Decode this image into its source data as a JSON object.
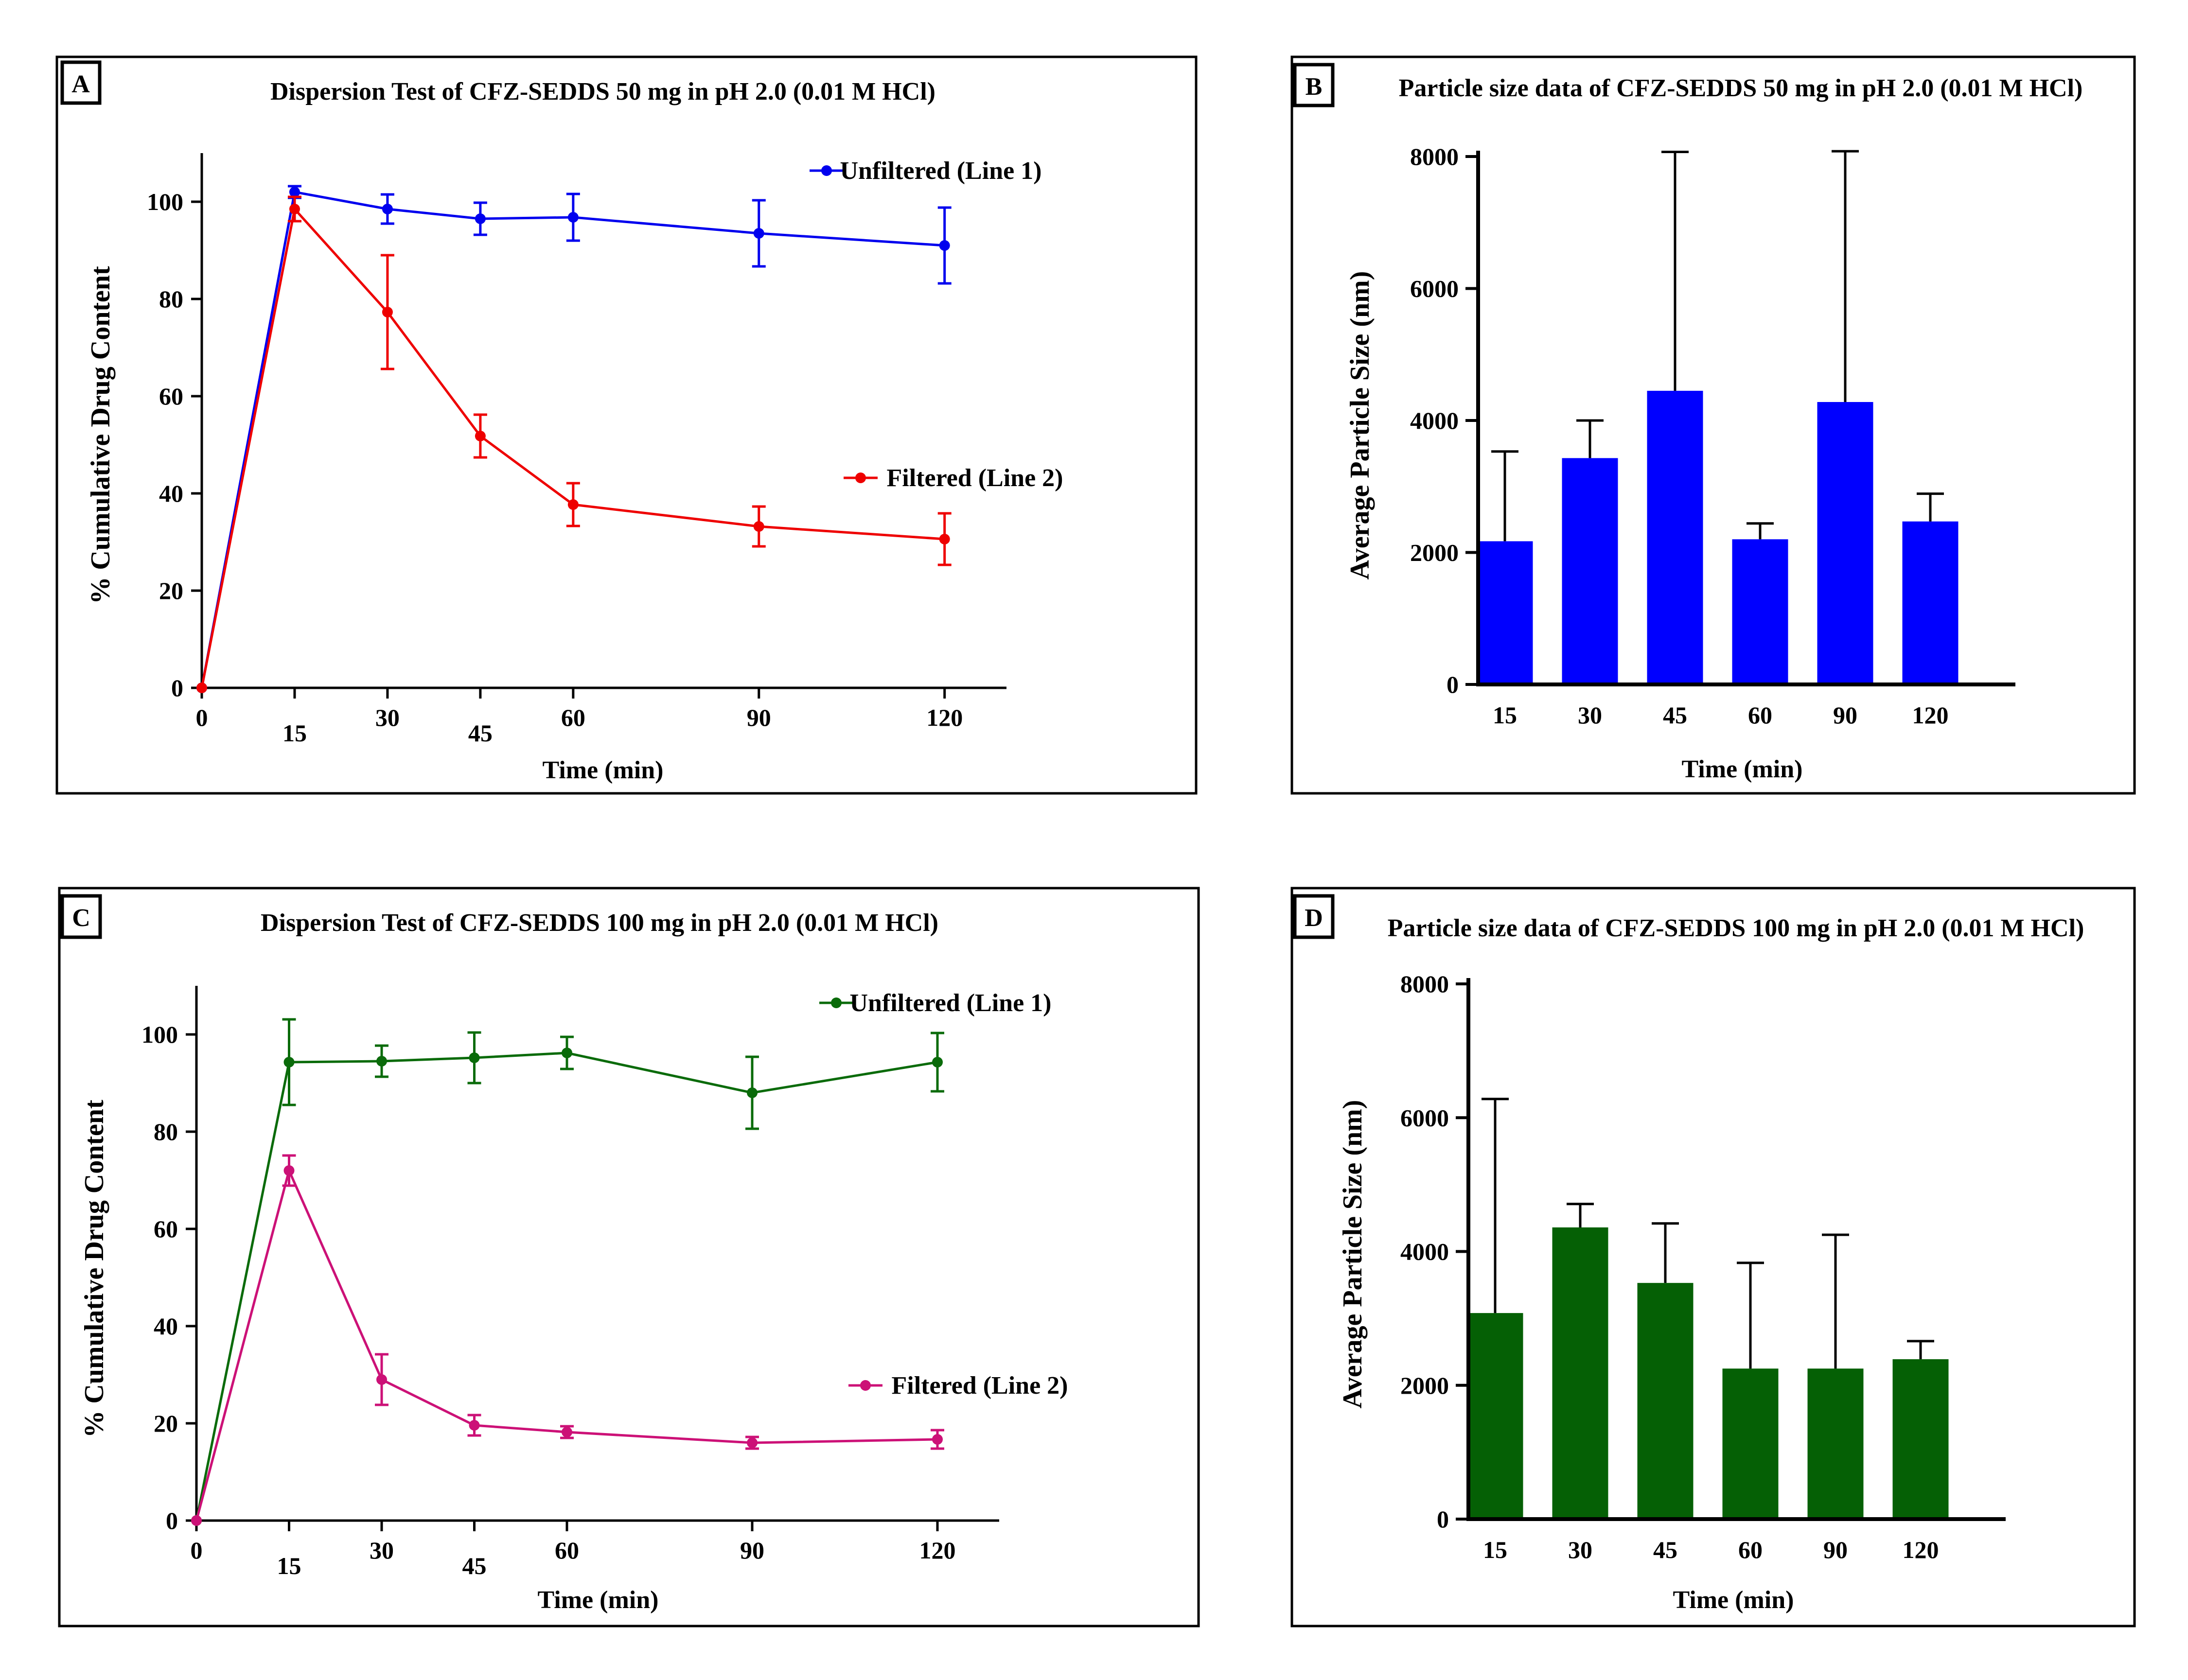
{
  "chart_data": [
    {
      "type": "line",
      "panel_label": "A",
      "title": "Dispersion Test of CFZ-SEDDS 50 mg in pH 2.0 (0.01 M HCl)",
      "xlabel": "Time (min)",
      "ylabel": "% Cumulative Drug Content",
      "xlim": [
        0,
        130
      ],
      "ylim": [
        0,
        110
      ],
      "x_ticks": [
        0,
        15,
        30,
        45,
        60,
        90,
        120
      ],
      "y_ticks": [
        0,
        20,
        40,
        60,
        80,
        100
      ],
      "legend_position": "top-right",
      "series": [
        {
          "name": "Unfiltered  (Line 1)",
          "color": "#0000ee",
          "x": [
            0,
            15,
            30,
            45,
            60,
            90,
            120
          ],
          "y": [
            0,
            102,
            98.5,
            96.5,
            96.8,
            93.5,
            91
          ],
          "error": [
            0,
            1.2,
            3,
            3.3,
            4.8,
            6.8,
            7.8
          ]
        },
        {
          "name": "Filtered (Line 2)",
          "color": "#ee0000",
          "x": [
            0,
            15,
            30,
            45,
            60,
            90,
            120
          ],
          "y": [
            0,
            98.5,
            77.3,
            51.8,
            37.7,
            33.2,
            30.6
          ],
          "error": [
            0,
            2.5,
            11.7,
            4.4,
            4.4,
            4.1,
            5.3
          ]
        }
      ]
    },
    {
      "type": "bar",
      "panel_label": "B",
      "title": "Particle size data of CFZ-SEDDS 50 mg in pH 2.0 (0.01 M HCl)",
      "xlabel": "Time (min)",
      "ylabel": "Average Particle Size (nm)",
      "ylim": [
        0,
        8000
      ],
      "y_ticks": [
        0,
        2000,
        4000,
        6000,
        8000
      ],
      "color": "#0000ff",
      "categories": [
        "15",
        "30",
        "45",
        "60",
        "90",
        "120"
      ],
      "values": [
        2170,
        3430,
        4450,
        2200,
        4280,
        2470
      ],
      "error": [
        1360,
        570,
        3620,
        240,
        3800,
        420
      ]
    },
    {
      "type": "line",
      "panel_label": "C",
      "title": "Dispersion Test of CFZ-SEDDS 100 mg in pH 2.0 (0.01 M HCl)",
      "xlabel": "Time (min)",
      "ylabel": "% Cumulative Drug Content",
      "xlim": [
        0,
        130
      ],
      "ylim": [
        0,
        110
      ],
      "x_ticks": [
        0,
        15,
        30,
        45,
        60,
        90,
        120
      ],
      "y_ticks": [
        0,
        20,
        40,
        60,
        80,
        100
      ],
      "legend_position": "right",
      "series": [
        {
          "name": "Unfiltered (Line 1)",
          "color": "#0a6b0a",
          "x": [
            0,
            15,
            30,
            45,
            60,
            90,
            120
          ],
          "y": [
            0,
            94.3,
            94.5,
            95.2,
            96.2,
            88,
            94.3
          ],
          "error": [
            0,
            8.8,
            3.2,
            5.2,
            3.3,
            7.4,
            6
          ]
        },
        {
          "name": "Filtered (Line 2)",
          "color": "#cc1177",
          "x": [
            0,
            15,
            30,
            45,
            60,
            90,
            120
          ],
          "y": [
            0,
            72,
            29,
            19.6,
            18.2,
            16,
            16.7
          ],
          "error": [
            0,
            3.1,
            5.2,
            2.1,
            1.2,
            1.2,
            1.9
          ]
        }
      ]
    },
    {
      "type": "bar",
      "panel_label": "D",
      "title": "Particle size data of CFZ-SEDDS 100 mg in pH 2.0 (0.01 M HCl)",
      "xlabel": "Time (min)",
      "ylabel": "Average Particle Size (nm)",
      "ylim": [
        0,
        8000
      ],
      "y_ticks": [
        0,
        2000,
        4000,
        6000,
        8000
      ],
      "color": "#056005",
      "categories": [
        "15",
        "30",
        "45",
        "60",
        "90",
        "120"
      ],
      "values": [
        3080,
        4360,
        3530,
        2250,
        2250,
        2390
      ],
      "error": [
        3200,
        350,
        890,
        1580,
        2000,
        270
      ]
    }
  ]
}
